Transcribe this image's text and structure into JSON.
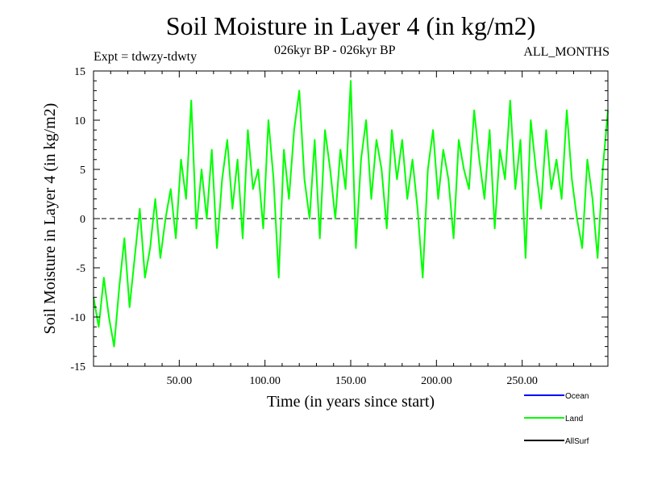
{
  "chart_data": {
    "type": "line",
    "title": "Soil Moisture in Layer 4 (in kg/m2)",
    "subtitle_left": "Expt = tdwzy-tdwty",
    "subtitle_center": "026kyr BP - 026kyr BP",
    "subtitle_right": "ALL_MONTHS",
    "xlabel": "Time (in years since start)",
    "ylabel": "Soil Moisture in Layer 4 (in kg/m2)",
    "xlim": [
      0,
      300
    ],
    "ylim": [
      -15,
      15
    ],
    "x_ticks": [
      50,
      100,
      150,
      200,
      250
    ],
    "x_tick_labels": [
      "50.00",
      "100.00",
      "150.00",
      "200.00",
      "250.00"
    ],
    "y_ticks": [
      -15,
      -10,
      -5,
      0,
      5,
      10,
      15
    ],
    "y_tick_labels": [
      "-15",
      "-10",
      "-5",
      "0",
      "5",
      "10",
      "15"
    ],
    "reference_line": 0,
    "legend": [
      {
        "name": "Ocean",
        "color": "#0000ff"
      },
      {
        "name": "Land",
        "color": "#00ff00"
      },
      {
        "name": "AllSurf",
        "color": "#000000"
      }
    ],
    "series": [
      {
        "name": "Land",
        "color": "#00ff00",
        "x": [
          0,
          3,
          6,
          9,
          12,
          15,
          18,
          21,
          24,
          27,
          30,
          33,
          36,
          39,
          42,
          45,
          48,
          51,
          54,
          57,
          60,
          63,
          66,
          69,
          72,
          75,
          78,
          81,
          84,
          87,
          90,
          93,
          96,
          99,
          102,
          105,
          108,
          111,
          114,
          117,
          120,
          123,
          126,
          129,
          132,
          135,
          138,
          141,
          144,
          147,
          150,
          153,
          156,
          159,
          162,
          165,
          168,
          171,
          174,
          177,
          180,
          183,
          186,
          189,
          192,
          195,
          198,
          201,
          204,
          207,
          210,
          213,
          216,
          219,
          222,
          225,
          228,
          231,
          234,
          237,
          240,
          243,
          246,
          249,
          252,
          255,
          258,
          261,
          264,
          267,
          270,
          273,
          276,
          279,
          282,
          285,
          288,
          291,
          294,
          297,
          300
        ],
        "values": [
          -8,
          -11,
          -6,
          -10,
          -13,
          -7,
          -2,
          -9,
          -4,
          1,
          -6,
          -3,
          2,
          -4,
          0,
          3,
          -2,
          6,
          2,
          12,
          -1,
          5,
          0,
          7,
          -3,
          4,
          8,
          1,
          6,
          -2,
          9,
          3,
          5,
          -1,
          10,
          4,
          -6,
          7,
          2,
          9,
          13,
          4,
          0,
          8,
          -2,
          9,
          5,
          0,
          7,
          3,
          14,
          -3,
          6,
          10,
          2,
          8,
          5,
          -1,
          9,
          4,
          8,
          2,
          6,
          1,
          -6,
          5,
          9,
          2,
          7,
          4,
          -2,
          8,
          5,
          3,
          11,
          6,
          2,
          9,
          -1,
          7,
          4,
          12,
          3,
          8,
          -4,
          10,
          5,
          1,
          9,
          3,
          6,
          2,
          11,
          4,
          0,
          -3,
          6,
          2,
          -4,
          5,
          11
        ]
      }
    ]
  }
}
